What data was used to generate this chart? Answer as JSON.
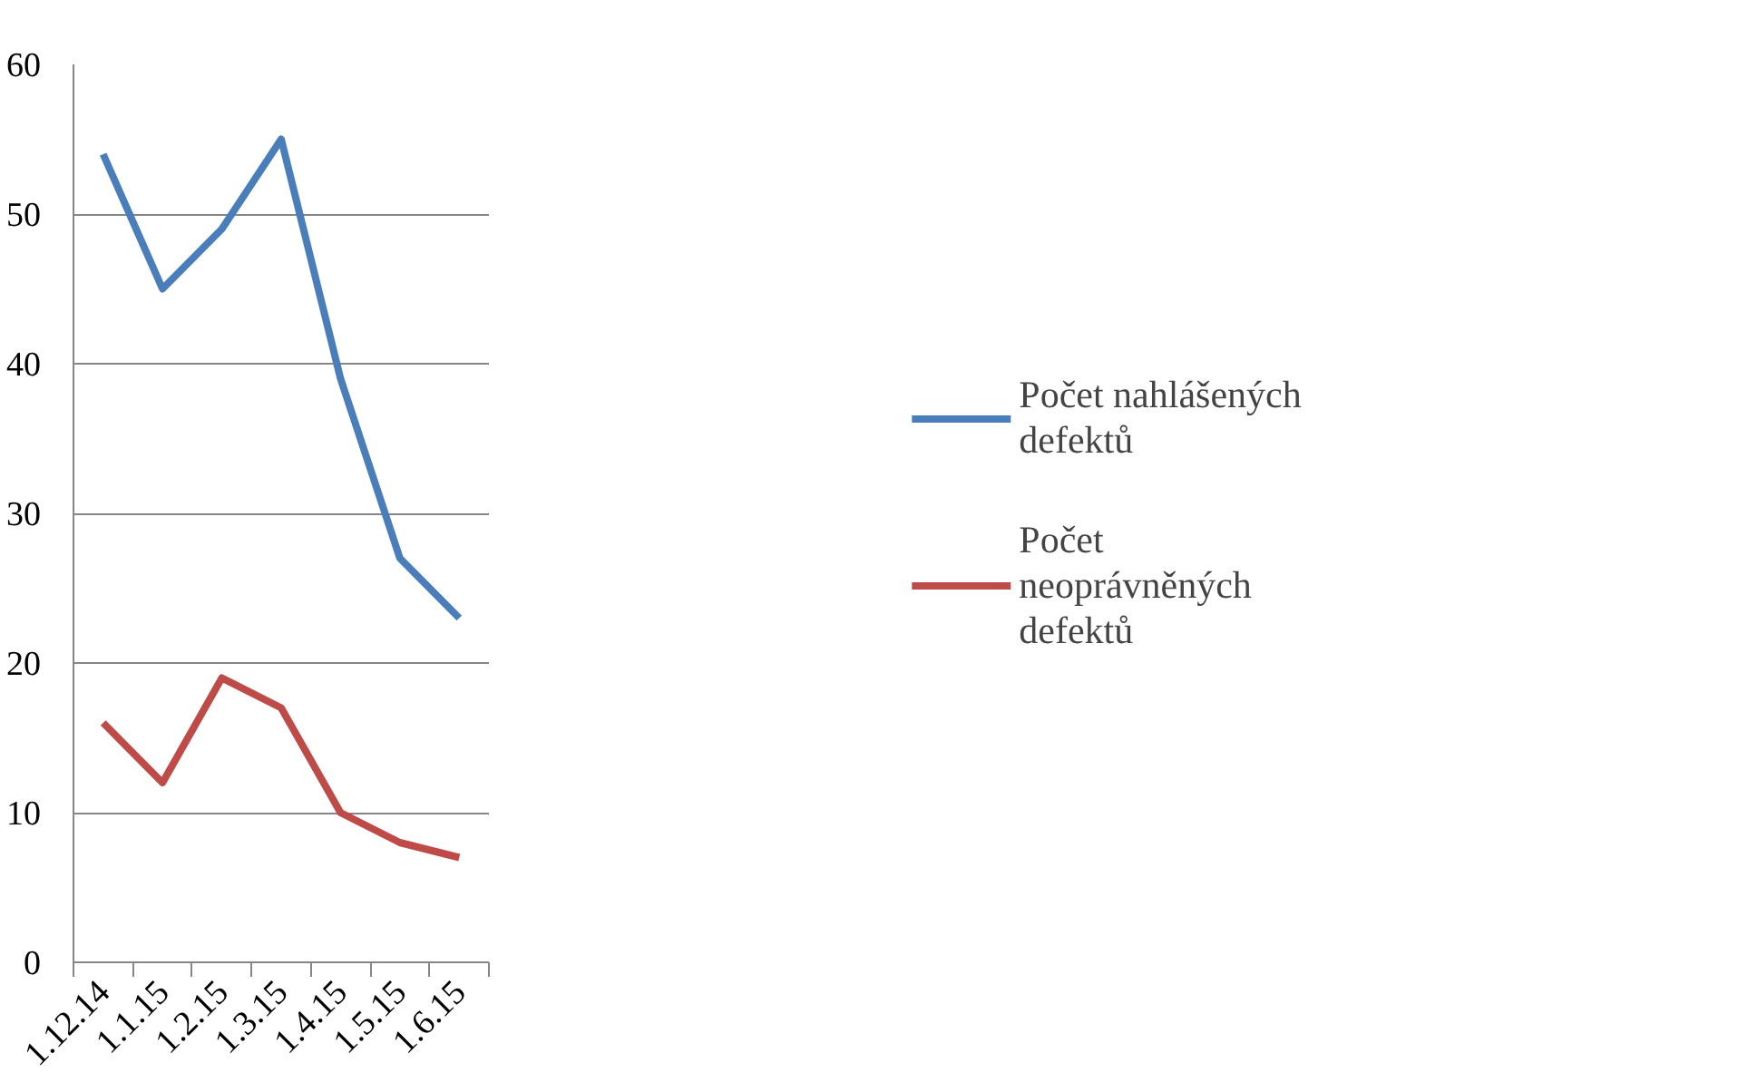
{
  "chart_data": {
    "type": "line",
    "categories": [
      "1.12.14",
      "1.1.15",
      "1.2.15",
      "1.3.15",
      "1.4.15",
      "1.5.15",
      "1.6.15"
    ],
    "series": [
      {
        "name": "Počet nahlášených defektů",
        "color": "#4a7ebb",
        "values": [
          54,
          45,
          49,
          55,
          39,
          27,
          23
        ]
      },
      {
        "name": "Počet neoprávněných defektů",
        "color": "#be4b48",
        "values": [
          16,
          12,
          19,
          17,
          10,
          8,
          7
        ]
      }
    ],
    "ylim": [
      0,
      60
    ],
    "yticks": [
      0,
      10,
      20,
      30,
      40,
      50,
      60
    ],
    "grid": "y",
    "legend": "right",
    "marker": "none",
    "line_style": "solid"
  }
}
